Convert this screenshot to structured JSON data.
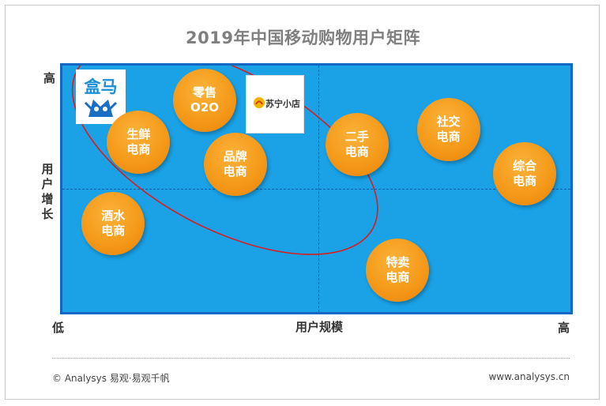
{
  "title": "2019年中国移动购物用户矩阵",
  "axes": {
    "y_label": "用户增长",
    "y_high": "高",
    "x_label": "用户规模",
    "x_low": "低",
    "x_high": "高"
  },
  "logos": {
    "hema": "盒马",
    "suning": "苏宁小店"
  },
  "chart_data": {
    "type": "scatter",
    "title": "2019年中国移动购物用户矩阵",
    "xlabel": "用户规模",
    "ylabel": "用户增长",
    "xlim": [
      0,
      100
    ],
    "ylim": [
      0,
      100
    ],
    "grid": false,
    "points": [
      {
        "label": [
          "零售",
          "O2O"
        ],
        "x": 28,
        "y": 86
      },
      {
        "label": [
          "生鲜",
          "电商"
        ],
        "x": 15,
        "y": 69
      },
      {
        "label": [
          "品牌",
          "电商"
        ],
        "x": 34,
        "y": 60
      },
      {
        "label": [
          "酒水",
          "电商"
        ],
        "x": 10,
        "y": 36
      },
      {
        "label": [
          "二手",
          "电商"
        ],
        "x": 58,
        "y": 68
      },
      {
        "label": [
          "社交",
          "电商"
        ],
        "x": 76,
        "y": 74
      },
      {
        "label": [
          "综合",
          "电商"
        ],
        "x": 91,
        "y": 56
      },
      {
        "label": [
          "特卖",
          "电商"
        ],
        "x": 66,
        "y": 17
      }
    ],
    "highlight_ellipse": {
      "cx": 32,
      "cy": 66,
      "rx": 33,
      "ry": 32,
      "color": "#d81e1e"
    }
  },
  "footer": {
    "source": "© Analysys 易观·易观千帆",
    "url": "www.analysys.cn"
  }
}
